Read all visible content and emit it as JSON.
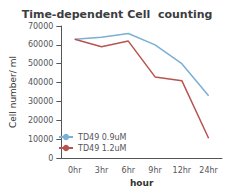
{
  "chart_data": {
    "type": "line",
    "title": "Time-dependent Cell  counting",
    "xlabel": "hour",
    "ylabel": "Cell number/ ml",
    "categories": [
      "0hr",
      "3hr",
      "6hr",
      "9hr",
      "12hr",
      "24hr"
    ],
    "series": [
      {
        "name": "TD49 0.9uM",
        "color": "#7BAFD4",
        "values": [
          63000,
          64000,
          66000,
          60000,
          50000,
          33000
        ]
      },
      {
        "name": "TD49 1.2uM",
        "color": "#B85450",
        "values": [
          63000,
          59000,
          62000,
          43000,
          41000,
          10500
        ]
      }
    ],
    "ylim": [
      0,
      70000
    ],
    "yticks": [
      0,
      10000,
      20000,
      30000,
      40000,
      50000,
      60000,
      70000
    ],
    "grid": false,
    "legend": "lower left"
  }
}
